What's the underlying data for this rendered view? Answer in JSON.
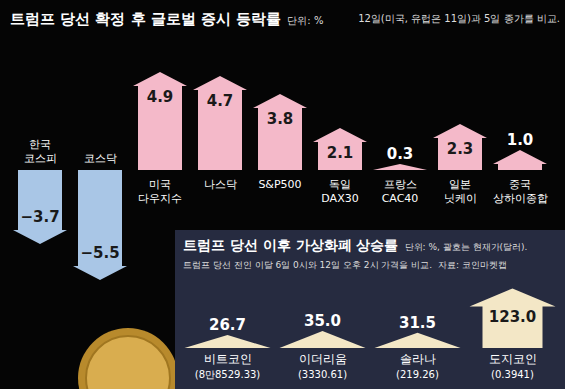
{
  "chart_data": [
    {
      "type": "bar",
      "title": "트럼프 당선 확정 후 글로벌 증시 등락률",
      "subtitle": "단위: %",
      "note": "12일(미국, 유럽은 11일)과 5일 종가를 비교.",
      "categories": [
        "한국 코스피",
        "코스닥",
        "미국 다우지수",
        "나스닥",
        "S&P500",
        "독일 DAX30",
        "프랑스 CAC40",
        "일본 닛케이",
        "중국 상하이종합"
      ],
      "values": [
        -3.7,
        -5.5,
        4.9,
        4.7,
        3.8,
        2.1,
        0.3,
        2.3,
        1.0
      ],
      "value_labels": [
        "−3.7",
        "−5.5",
        "4.9",
        "4.7",
        "3.8",
        "2.1",
        "0.3",
        "2.3",
        "1.0"
      ],
      "colors": [
        "#a9c6e6",
        "#a9c6e6",
        "#f4b9c9",
        "#f4b9c9",
        "#f4b9c9",
        "#f4b9c9",
        "#f4b9c9",
        "#f4b9c9",
        "#f4b9c9"
      ],
      "ylim": [
        -6,
        5.5
      ],
      "data_labels": true,
      "tick_labels": false
    },
    {
      "type": "bar",
      "title": "트럼프 당선 이후 가상화폐 상승률",
      "subtitle": "단위: %, 괄호는 현재가(달러).",
      "note": "트럼프 당선 전인 이달 6일 0시와 12일 오후 2시 가격을 비교.",
      "source": "자료: 코인마켓캡",
      "categories": [
        "비트코인",
        "이더리움",
        "솔라나",
        "도지코인"
      ],
      "sublabels": [
        "(8만8529.33)",
        "(3330.61)",
        "(219.26)",
        "(0.3941)"
      ],
      "values": [
        26.7,
        35.0,
        31.5,
        123.0
      ],
      "value_labels": [
        "26.7",
        "35.0",
        "31.5",
        "123.0"
      ],
      "color": "#f3e7c6",
      "ylim": [
        0,
        130
      ],
      "data_labels": true,
      "tick_labels": false
    }
  ]
}
